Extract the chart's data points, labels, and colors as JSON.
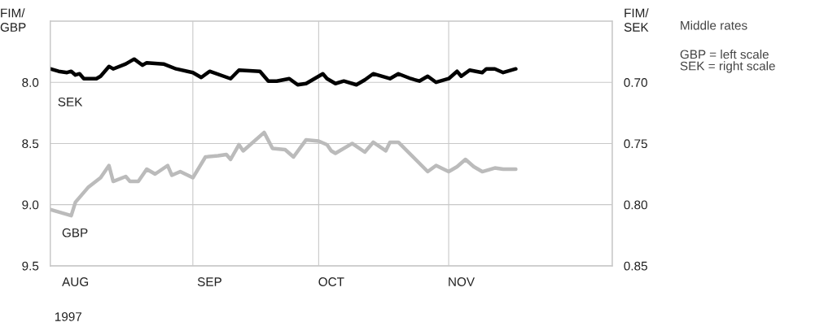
{
  "chart_data": {
    "type": "line",
    "xlabel": "1997",
    "ylabel": "FIM/\nGBP",
    "y2label": "FIM/\nSEK",
    "annotations": [
      "Middle rates",
      "GBP = left scale\nSEK = right scale"
    ],
    "xlim": [
      "1997-07-29",
      "1997-12-10"
    ],
    "xticks": [
      {
        "value": "1997-08-04",
        "label": "AUG"
      },
      {
        "value": "1997-09-05",
        "label": "SEP"
      },
      {
        "value": "1997-10-04",
        "label": "OCT"
      },
      {
        "value": "1997-11-04",
        "label": "NOV"
      }
    ],
    "ref_lines": [
      {
        "axis": "x",
        "value": "1997-09-01",
        "color": "#c8c8c8"
      },
      {
        "axis": "x",
        "value": "1997-10-01",
        "color": "#c8c8c8"
      },
      {
        "axis": "x",
        "value": "1997-11-01",
        "color": "#c8c8c8"
      }
    ],
    "ylim": [
      9.5,
      7.5
    ],
    "yticks": [
      {
        "value": 8.0,
        "label": "8.0"
      },
      {
        "value": 8.5,
        "label": "8.5"
      },
      {
        "value": 9.0,
        "label": "9.0"
      },
      {
        "value": 9.5,
        "label": "9.5"
      }
    ],
    "y2lim": [
      0.85,
      0.65
    ],
    "y2ticks": [
      {
        "value": 0.7,
        "label": "0.70"
      },
      {
        "value": 0.75,
        "label": "0.75"
      },
      {
        "value": 0.8,
        "label": "0.80"
      },
      {
        "value": 0.85,
        "label": "0.85"
      }
    ],
    "grid": "y",
    "legend": false,
    "line_style": "solid",
    "marker": "none",
    "series": [
      {
        "name": "SEK",
        "color": "#000000",
        "axis": "y2",
        "x": [
          "1997-07-29",
          "1997-07-31",
          "1997-08-02",
          "1997-08-03",
          "1997-08-04",
          "1997-08-05",
          "1997-08-06",
          "1997-08-09",
          "1997-08-10",
          "1997-08-12",
          "1997-08-13",
          "1997-08-16",
          "1997-08-18",
          "1997-08-20",
          "1997-08-21",
          "1997-08-25",
          "1997-08-28",
          "1997-09-01",
          "1997-09-03",
          "1997-09-05",
          "1997-09-10",
          "1997-09-12",
          "1997-09-17",
          "1997-09-19",
          "1997-09-21",
          "1997-09-24",
          "1997-09-26",
          "1997-09-28",
          "1997-10-02",
          "1997-10-03",
          "1997-10-05",
          "1997-10-07",
          "1997-10-10",
          "1997-10-12",
          "1997-10-14",
          "1997-10-18",
          "1997-10-20",
          "1997-10-23",
          "1997-10-25",
          "1997-10-27",
          "1997-10-29",
          "1997-11-01",
          "1997-11-03",
          "1997-11-04",
          "1997-11-06",
          "1997-11-09",
          "1997-11-10",
          "1997-11-12",
          "1997-11-14",
          "1997-11-17"
        ],
        "values": [
          0.689,
          0.691,
          0.692,
          0.691,
          0.694,
          0.693,
          0.697,
          0.697,
          0.695,
          0.687,
          0.689,
          0.685,
          0.681,
          0.686,
          0.684,
          0.685,
          0.689,
          0.692,
          0.696,
          0.691,
          0.697,
          0.69,
          0.691,
          0.699,
          0.699,
          0.697,
          0.702,
          0.701,
          0.693,
          0.697,
          0.701,
          0.699,
          0.702,
          0.698,
          0.693,
          0.697,
          0.693,
          0.697,
          0.699,
          0.695,
          0.7,
          0.697,
          0.691,
          0.695,
          0.69,
          0.692,
          0.689,
          0.689,
          0.692,
          0.689
        ]
      },
      {
        "name": "GBP",
        "color": "#bbbbbb",
        "x": [
          "1997-07-29",
          "1997-08-01",
          "1997-08-03",
          "1997-08-04",
          "1997-08-07",
          "1997-08-10",
          "1997-08-12",
          "1997-08-13",
          "1997-08-16",
          "1997-08-17",
          "1997-08-19",
          "1997-08-21",
          "1997-08-23",
          "1997-08-26",
          "1997-08-27",
          "1997-08-29",
          "1997-09-01",
          "1997-09-04",
          "1997-09-07",
          "1997-09-09",
          "1997-09-10",
          "1997-09-12",
          "1997-09-13",
          "1997-09-18",
          "1997-09-20",
          "1997-09-23",
          "1997-09-25",
          "1997-09-28",
          "1997-10-01",
          "1997-10-03",
          "1997-10-04",
          "1997-10-05",
          "1997-10-09",
          "1997-10-12",
          "1997-10-14",
          "1997-10-17",
          "1997-10-18",
          "1997-10-20",
          "1997-10-27",
          "1997-10-29",
          "1997-11-01",
          "1997-11-03",
          "1997-11-05",
          "1997-11-07",
          "1997-11-09",
          "1997-11-12",
          "1997-11-14",
          "1997-11-17"
        ],
        "values": [
          9.04,
          9.07,
          9.09,
          8.98,
          8.86,
          8.78,
          8.68,
          8.81,
          8.77,
          8.81,
          8.81,
          8.71,
          8.75,
          8.68,
          8.76,
          8.73,
          8.78,
          8.61,
          8.6,
          8.59,
          8.63,
          8.51,
          8.56,
          8.41,
          8.54,
          8.55,
          8.61,
          8.47,
          8.48,
          8.51,
          8.56,
          8.58,
          8.5,
          8.57,
          8.49,
          8.56,
          8.49,
          8.49,
          8.73,
          8.68,
          8.73,
          8.69,
          8.63,
          8.69,
          8.73,
          8.7,
          8.71,
          8.71
        ]
      }
    ]
  }
}
